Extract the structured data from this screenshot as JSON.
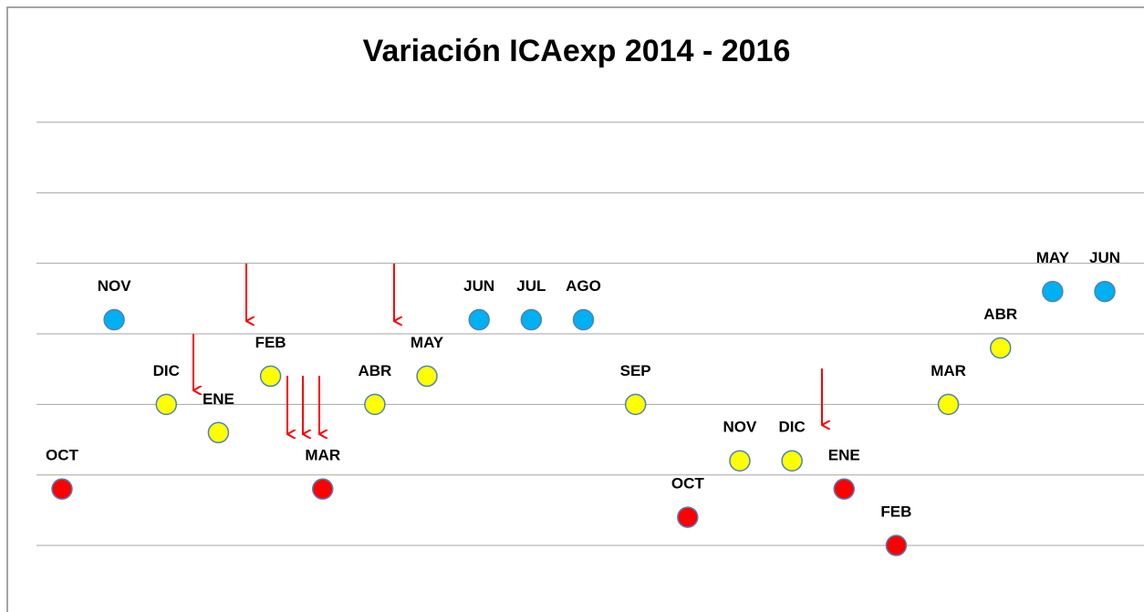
{
  "chart_data": {
    "type": "scatter",
    "title": "Variación ICAexp 2014 - 2016",
    "categories": [
      "OCT",
      "NOV",
      "DIC",
      "ENE",
      "FEB",
      "MAR",
      "ABR",
      "MAY",
      "JUN",
      "JUL",
      "AGO",
      "SEP",
      "OCT",
      "NOV",
      "DIC",
      "ENE",
      "FEB",
      "MAR",
      "ABR",
      "MAY",
      "JUN"
    ],
    "values": [
      1.8,
      4.2,
      3.0,
      2.6,
      3.4,
      1.8,
      3.0,
      3.4,
      4.2,
      4.2,
      4.2,
      3.0,
      1.4,
      2.2,
      2.2,
      1.8,
      1.0,
      3.0,
      3.8,
      4.6,
      4.6
    ],
    "colors": [
      "#ff0000",
      "#00b0f0",
      "#ffff00",
      "#ffff00",
      "#ffff00",
      "#ff0000",
      "#ffff00",
      "#ffff00",
      "#00b0f0",
      "#00b0f0",
      "#00b0f0",
      "#ffff00",
      "#ff0000",
      "#ffff00",
      "#ffff00",
      "#ff0000",
      "#ff0000",
      "#ffff00",
      "#ffff00",
      "#00b0f0",
      "#00b0f0"
    ],
    "ylim": [
      0.5,
      7
    ],
    "yticks": [
      1,
      2,
      3,
      4,
      5,
      6,
      7
    ],
    "grid": true
  }
}
